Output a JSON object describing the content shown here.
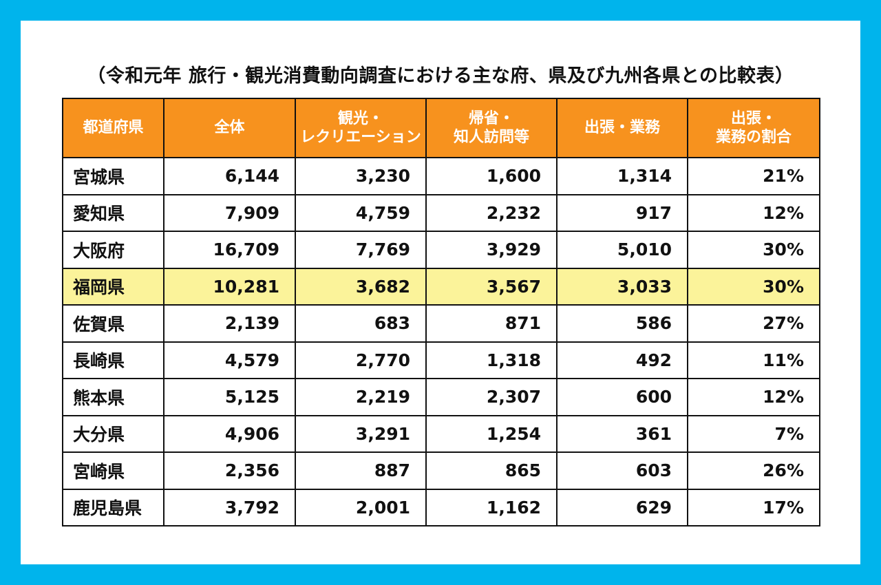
{
  "title": "（令和元年 旅行・観光消費動向調査における主な府、県及び九州各県との比較表）",
  "highlight_color": "#fbf39a",
  "header_color": "#f7921e",
  "chart_data": {
    "type": "table",
    "title": "（令和元年 旅行・観光消費動向調査における主な府、県及び九州各県との比較表）",
    "columns": [
      "都道府県",
      "全体",
      "観光・\nレクリエーション",
      "帰省・\n知人訪問等",
      "出張・業務",
      "出張・\n業務の割合"
    ],
    "highlight_row": 3,
    "rows": [
      [
        "宮城県",
        "6,144",
        "3,230",
        "1,600",
        "1,314",
        "21%"
      ],
      [
        "愛知県",
        "7,909",
        "4,759",
        "2,232",
        "917",
        "12%"
      ],
      [
        "大阪府",
        "16,709",
        "7,769",
        "3,929",
        "5,010",
        "30%"
      ],
      [
        "福岡県",
        "10,281",
        "3,682",
        "3,567",
        "3,033",
        "30%"
      ],
      [
        "佐賀県",
        "2,139",
        "683",
        "871",
        "586",
        "27%"
      ],
      [
        "長崎県",
        "4,579",
        "2,770",
        "1,318",
        "492",
        "11%"
      ],
      [
        "熊本県",
        "5,125",
        "2,219",
        "2,307",
        "600",
        "12%"
      ],
      [
        "大分県",
        "4,906",
        "3,291",
        "1,254",
        "361",
        "7%"
      ],
      [
        "宮崎県",
        "2,356",
        "887",
        "865",
        "603",
        "26%"
      ],
      [
        "鹿児島県",
        "3,792",
        "2,001",
        "1,162",
        "629",
        "17%"
      ]
    ]
  }
}
